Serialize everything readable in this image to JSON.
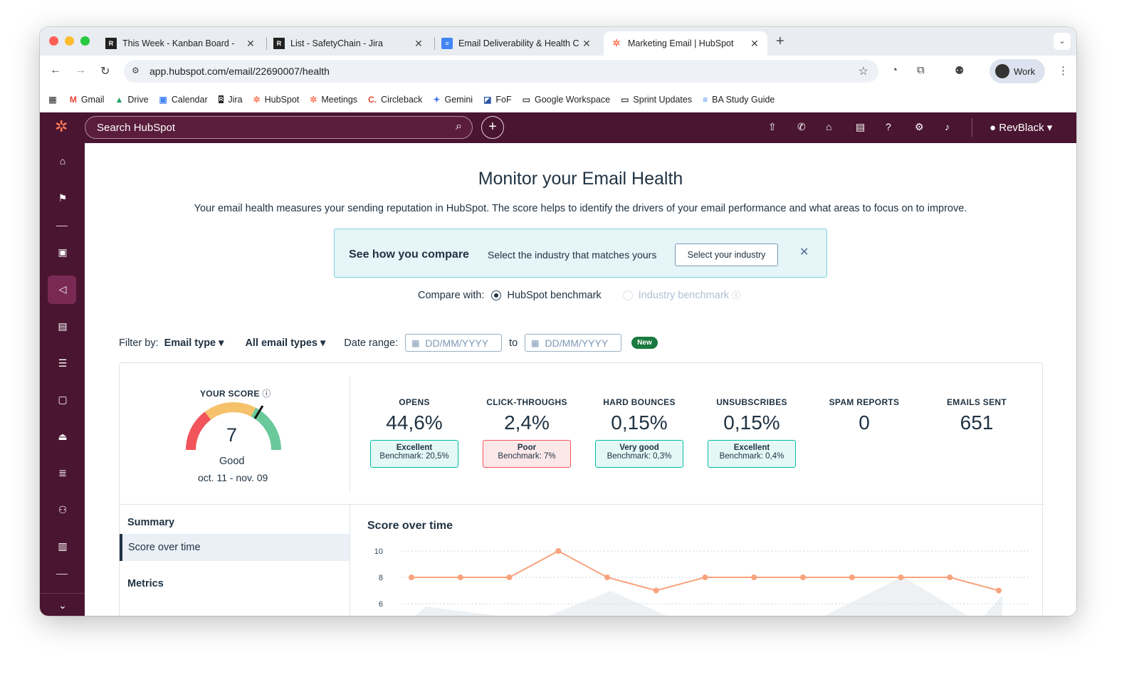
{
  "browser": {
    "tabs": [
      {
        "title": "This Week - Kanban Board - ",
        "active": false
      },
      {
        "title": "List - SafetyChain - Jira",
        "active": false
      },
      {
        "title": "Email Deliverability & Health C",
        "active": false
      },
      {
        "title": "Marketing Email | HubSpot",
        "active": true
      }
    ],
    "url": "app.hubspot.com/email/22690007/health",
    "profile": "Work",
    "bookmarks": [
      "Gmail",
      "Drive",
      "Calendar",
      "Jira",
      "HubSpot",
      "Meetings",
      "Circleback",
      "Gemini",
      "FoF",
      "Google Workspace",
      "Sprint Updates",
      "BA Study Guide"
    ]
  },
  "hubspot": {
    "search_placeholder": "Search HubSpot",
    "account": "RevBlack",
    "page_title": "Monitor your Email Health",
    "subtitle": "Your email health measures your sending reputation in HubSpot. The score helps to identify the drivers of your email performance and what areas to focus on to improve.",
    "compare": {
      "title": "See how you compare",
      "text": "Select the industry that matches yours",
      "button": "Select your industry"
    },
    "compare_with": {
      "label": "Compare with:",
      "option1": "HubSpot benchmark",
      "option2": "Industry benchmark"
    },
    "filters": {
      "label": "Filter by:",
      "email_type": "Email type",
      "all_types": "All email types",
      "date_label": "Date range:",
      "date_placeholder": "DD/MM/YYYY",
      "to": "to",
      "new_badge": "New"
    },
    "score": {
      "label": "YOUR SCORE",
      "value": "7",
      "rating": "Good",
      "range": "oct. 11 - nov. 09"
    },
    "metrics": [
      {
        "label": "OPENS",
        "value": "44,6%",
        "rating": "Excellent",
        "benchmark": "Benchmark: 20,5%",
        "status": "good"
      },
      {
        "label": "CLICK-THROUGHS",
        "value": "2,4%",
        "rating": "Poor",
        "benchmark": "Benchmark: 7%",
        "status": "poor"
      },
      {
        "label": "HARD BOUNCES",
        "value": "0,15%",
        "rating": "Very good",
        "benchmark": "Benchmark: 0,3%",
        "status": "good"
      },
      {
        "label": "UNSUBSCRIBES",
        "value": "0,15%",
        "rating": "Excellent",
        "benchmark": "Benchmark: 0,4%",
        "status": "good"
      },
      {
        "label": "SPAM REPORTS",
        "value": "0"
      },
      {
        "label": "EMAILS SENT",
        "value": "651"
      }
    ],
    "nav": {
      "summary": "Summary",
      "score_over_time": "Score over time",
      "metrics": "Metrics"
    },
    "chart_title": "Score over time"
  },
  "chart_data": {
    "type": "line",
    "title": "Score over time",
    "yticks": [
      10,
      8,
      6
    ],
    "ylim": [
      6,
      10
    ],
    "series": [
      {
        "values": [
          8,
          8,
          8,
          10,
          8,
          7,
          8,
          8,
          8,
          8,
          8,
          8,
          7
        ]
      }
    ],
    "line_color": "#f8a37d"
  }
}
